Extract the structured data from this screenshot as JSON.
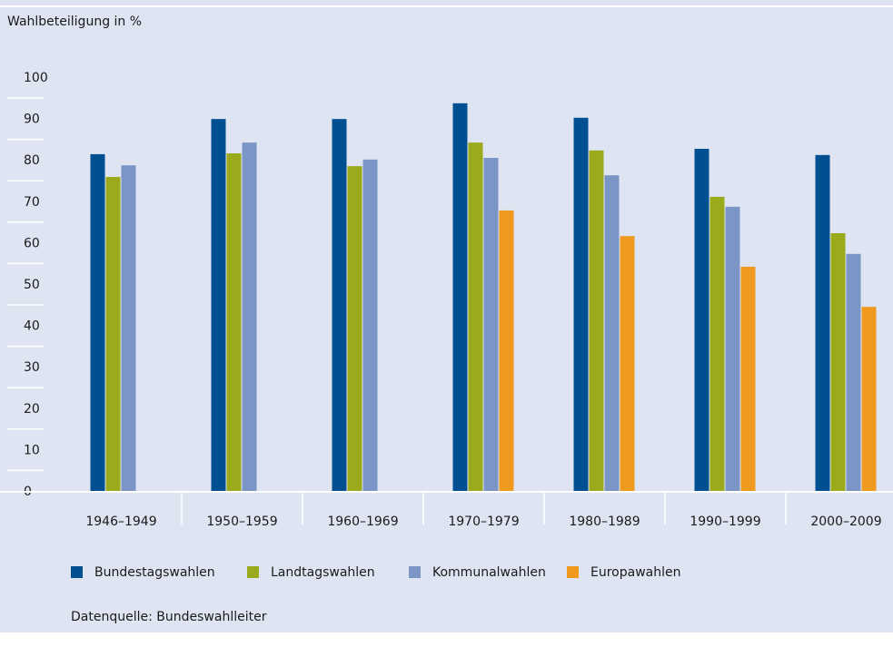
{
  "chart_data": {
    "type": "bar",
    "y_label": "Wahlbeteiligung in %",
    "source": "Datenquelle: Bundeswahlleiter",
    "categories": [
      "1946–1949",
      "1950–1959",
      "1960–1969",
      "1970–1979",
      "1980–1989",
      "1990–1999",
      "2000–2009"
    ],
    "series": [
      {
        "name": "Bundestagswahlen",
        "color": "#004f91",
        "values": [
          81.6,
          90.1,
          90.1,
          93.9,
          90.4,
          82.9,
          81.4
        ]
      },
      {
        "name": "Landtagswahlen",
        "color": "#9aaa1a",
        "values": [
          76.1,
          81.8,
          78.7,
          84.4,
          82.5,
          71.3,
          62.5
        ]
      },
      {
        "name": "Kommunalwahlen",
        "color": "#7b96c6",
        "values": [
          78.9,
          84.4,
          80.3,
          80.7,
          76.5,
          68.9,
          57.5
        ]
      },
      {
        "name": "Europawahlen",
        "color": "#ef9a1e",
        "values": [
          null,
          null,
          null,
          68.0,
          61.8,
          54.4,
          44.7
        ]
      }
    ],
    "ylim": [
      0,
      100
    ],
    "yticks": [
      0,
      10,
      20,
      30,
      40,
      50,
      60,
      70,
      80,
      90,
      100
    ],
    "legend": "bottom"
  }
}
